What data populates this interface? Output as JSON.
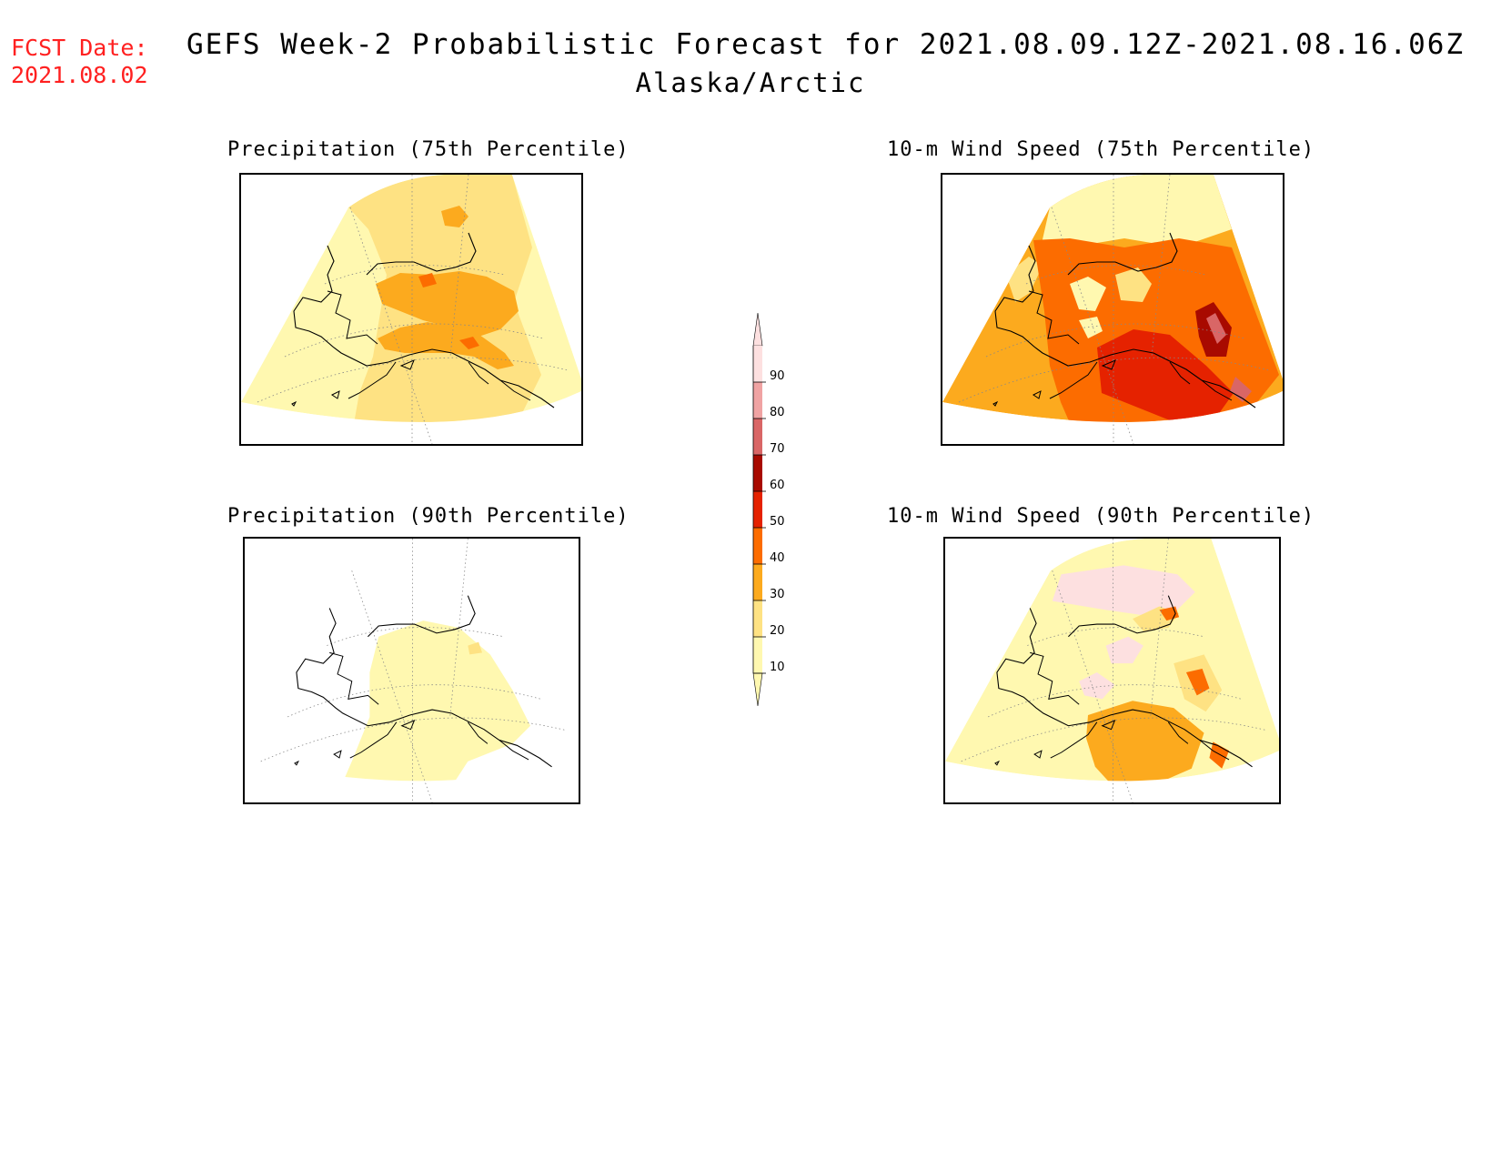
{
  "header": {
    "fcst_label": "FCST Date:",
    "fcst_date": "2021.08.02",
    "title_line1": "GEFS Week-2 Probabilistic Forecast for 2021.08.09.12Z-2021.08.16.06Z",
    "title_line2": "Alaska/Arctic"
  },
  "panels": [
    {
      "id": "precip75",
      "title": "Precipitation (75th Percentile)"
    },
    {
      "id": "wind75",
      "title": "10-m Wind Speed (75th Percentile)"
    },
    {
      "id": "precip90",
      "title": "Precipitation (90th Percentile)"
    },
    {
      "id": "wind90",
      "title": "10-m Wind Speed (90th Percentile)"
    }
  ],
  "colorbar": {
    "ticks": [
      "10",
      "20",
      "30",
      "40",
      "50",
      "60",
      "70",
      "80",
      "90"
    ],
    "colors": [
      "#fff8b0",
      "#fee283",
      "#fcaa1e",
      "#fc6c00",
      "#e52200",
      "#a80a00",
      "#d96666",
      "#f0a3a3",
      "#fde0e0"
    ]
  }
}
